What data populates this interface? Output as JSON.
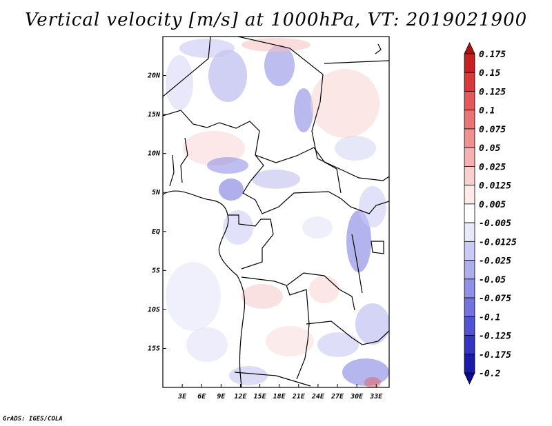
{
  "title": "Vertical velocity [m/s] at 1000hPa, VT: 2019021900",
  "footer": "GrADS: IGES/COLA",
  "map": {
    "lat_labels": [
      "20N",
      "15N",
      "10N",
      "5N",
      "EQ",
      "5S",
      "10S",
      "15S"
    ],
    "lat_values": [
      20,
      15,
      10,
      5,
      0,
      -5,
      -10,
      -15
    ],
    "lon_labels": [
      "3E",
      "6E",
      "9E",
      "12E",
      "15E",
      "18E",
      "21E",
      "24E",
      "27E",
      "30E",
      "33E"
    ],
    "lon_values": [
      3,
      6,
      9,
      12,
      15,
      18,
      21,
      24,
      27,
      30,
      33
    ],
    "lon_range": [
      0,
      35
    ],
    "lat_range": [
      -20,
      25
    ]
  },
  "colorbar": {
    "levels": [
      "0.175",
      "0.15",
      "0.125",
      "0.1",
      "0.075",
      "0.05",
      "0.025",
      "0.0125",
      "0.005",
      "-0.005",
      "-0.0125",
      "-0.025",
      "-0.05",
      "-0.075",
      "-0.1",
      "-0.125",
      "-0.175",
      "-0.2"
    ],
    "colors": [
      "#b01010",
      "#c62020",
      "#d83a3a",
      "#e45a5a",
      "#ea7474",
      "#f09090",
      "#f6b0b0",
      "#fad0d0",
      "#fdeaea",
      "#ffffff",
      "#e8e8fb",
      "#cacaf4",
      "#aeaeee",
      "#9090e8",
      "#7272e0",
      "#5252d6",
      "#3434c4",
      "#1a1aaa",
      "#0a0a8e"
    ]
  }
}
